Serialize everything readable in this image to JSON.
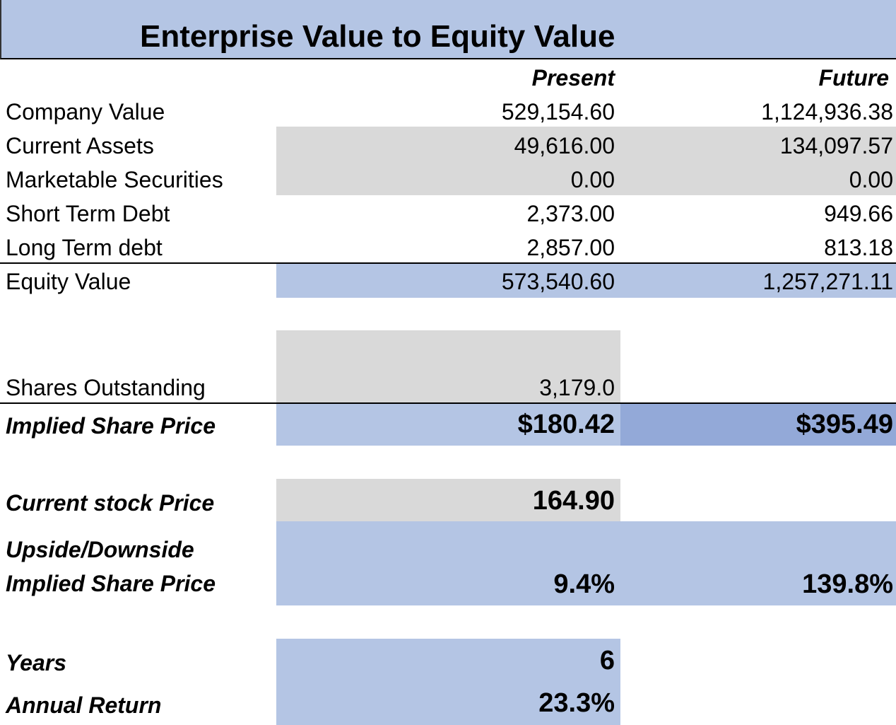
{
  "title": "Enterprise Value to Equity Value",
  "headers": {
    "present": "Present",
    "future": "Future"
  },
  "rows": [
    {
      "label": "Company Value",
      "present": "529,154.60",
      "future": "1,124,936.38"
    },
    {
      "label": "Current Assets",
      "present": "49,616.00",
      "future": "134,097.57"
    },
    {
      "label": "Marketable Securities",
      "present": "0.00",
      "future": "0.00"
    },
    {
      "label": "Short Term Debt",
      "present": "2,373.00",
      "future": "949.66"
    },
    {
      "label": "Long Term debt",
      "present": "2,857.00",
      "future": "813.18"
    },
    {
      "label": "Equity Value",
      "present": "573,540.60",
      "future": "1,257,271.11"
    }
  ],
  "shares": {
    "label": "Shares Outstanding",
    "present": "3,179.0"
  },
  "implied_price": {
    "label": "Implied Share Price",
    "present": "$180.42",
    "future": "$395.49"
  },
  "current_price": {
    "label": "Current stock Price",
    "present": "164.90"
  },
  "upside": {
    "label_line1": "Upside/Downside",
    "label_line2": "Implied Share Price",
    "present": "9.4%",
    "future": "139.8%"
  },
  "years": {
    "label": "Years",
    "present": "6"
  },
  "annual_return": {
    "label": "Annual Return",
    "present": "23.3%"
  }
}
